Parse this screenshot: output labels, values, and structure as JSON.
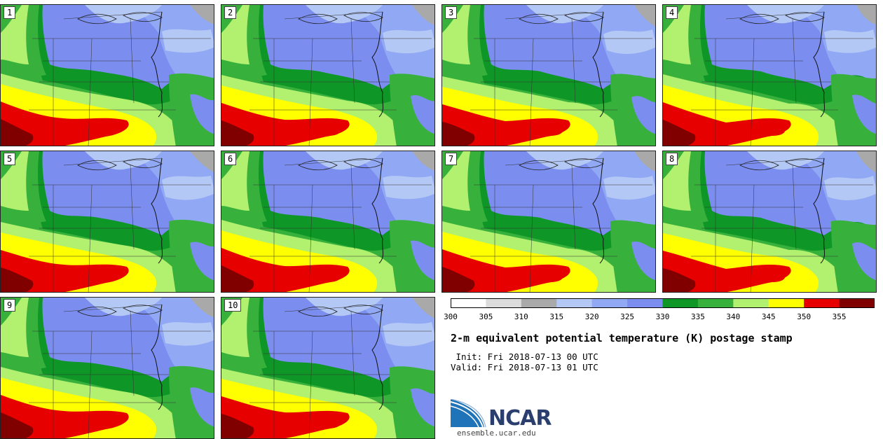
{
  "chart_data": {
    "type": "heatmap",
    "title": "2-m equivalent potential temperature (K) postage stamp",
    "members": [
      "1",
      "2",
      "3",
      "4",
      "5",
      "6",
      "7",
      "8",
      "9",
      "10"
    ],
    "colorbar": {
      "levels": [
        300,
        305,
        310,
        315,
        320,
        325,
        330,
        335,
        340,
        345,
        350,
        355,
        360
      ],
      "tick_labels": [
        "300",
        "305",
        "310",
        "315",
        "320",
        "325",
        "330",
        "335",
        "340",
        "345",
        "350",
        "355"
      ],
      "colors": [
        "#ffffff",
        "#dcdcdc",
        "#a9a9a9",
        "#b4c8f5",
        "#91a8f5",
        "#7b8ef0",
        "#0e9626",
        "#37b13b",
        "#b2f06f",
        "#ffff00",
        "#e60000",
        "#800000"
      ],
      "units": "K"
    }
  },
  "info": {
    "init": " Init: Fri 2018-07-13 00 UTC",
    "valid": "Valid: Fri 2018-07-13 01 UTC"
  },
  "logo": {
    "name": "NCAR",
    "url": "ensemble.ucar.edu"
  }
}
